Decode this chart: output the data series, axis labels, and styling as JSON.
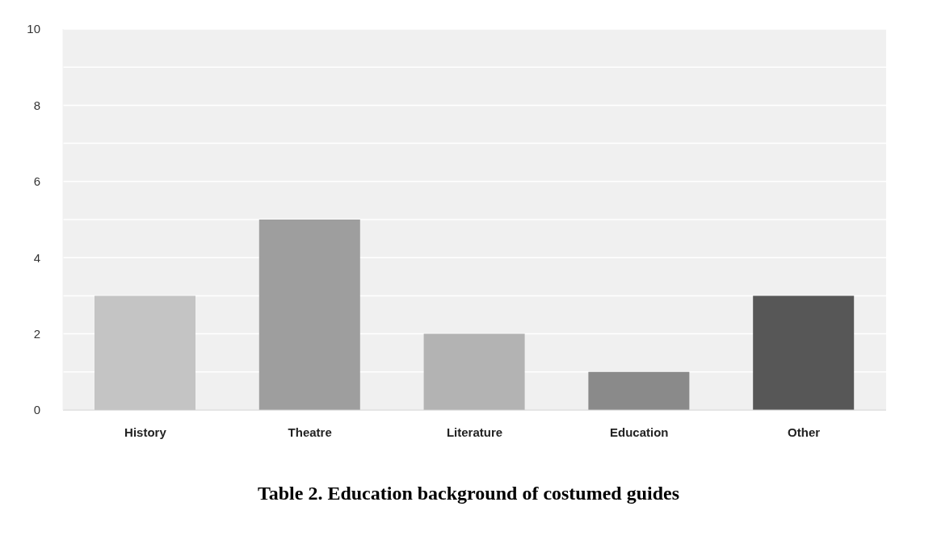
{
  "chart_data": {
    "type": "bar",
    "title": "Table 2. Education background of costumed guides",
    "categories": [
      "History",
      "Theatre",
      "Literature",
      "Education",
      "Other"
    ],
    "values": [
      3,
      5,
      2,
      1,
      3
    ],
    "colors": [
      "#c4c4c4",
      "#9e9e9e",
      "#b3b3b3",
      "#8a8a8a",
      "#575757"
    ],
    "ylim": [
      0,
      10
    ],
    "yticks": [
      0,
      {
        "value": 1,
        "label": null
      },
      2,
      {
        "value": 3,
        "label": null
      },
      4,
      {
        "value": 5,
        "label": null
      },
      6,
      {
        "value": 7,
        "label": null
      },
      8,
      {
        "value": 9,
        "label": null
      },
      10
    ],
    "grid": "y"
  }
}
